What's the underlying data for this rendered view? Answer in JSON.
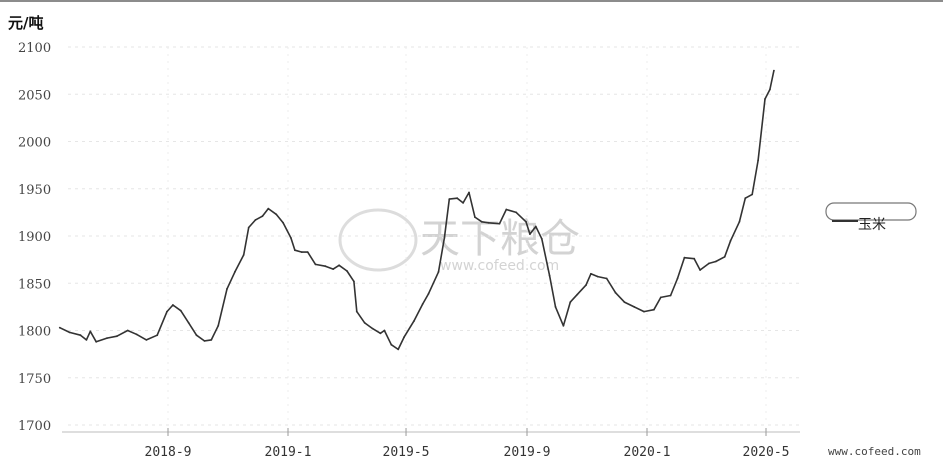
{
  "chart_data": {
    "type": "line",
    "ylabel": "元/吨",
    "ylim": [
      1700,
      2100
    ],
    "yticks": [
      "1700",
      "1750",
      "1800",
      "1850",
      "1900",
      "1950",
      "2000",
      "2050",
      "2100"
    ],
    "xticks": [
      {
        "label": "2018-9",
        "x": "2018-09-01"
      },
      {
        "label": "2019-1",
        "x": "2019-01-01"
      },
      {
        "label": "2019-5",
        "x": "2019-05-01"
      },
      {
        "label": "2019-9",
        "x": "2019-09-01"
      },
      {
        "label": "2020-1",
        "x": "2020-01-01"
      },
      {
        "label": "2020-5",
        "x": "2020-05-01"
      }
    ],
    "grid": true,
    "legend_position": "right",
    "series": [
      {
        "name": "玉米",
        "color": "#333333",
        "points": [
          [
            "2018-05-14",
            1803
          ],
          [
            "2018-05-24",
            1798
          ],
          [
            "2018-06-04",
            1795
          ],
          [
            "2018-06-10",
            1790
          ],
          [
            "2018-06-14",
            1799
          ],
          [
            "2018-06-20",
            1788
          ],
          [
            "2018-07-01",
            1792
          ],
          [
            "2018-07-11",
            1794
          ],
          [
            "2018-07-22",
            1800
          ],
          [
            "2018-07-31",
            1796
          ],
          [
            "2018-08-10",
            1790
          ],
          [
            "2018-08-21",
            1795
          ],
          [
            "2018-08-31",
            1820
          ],
          [
            "2018-09-06",
            1827
          ],
          [
            "2018-09-14",
            1821
          ],
          [
            "2018-09-22",
            1808
          ],
          [
            "2018-09-30",
            1795
          ],
          [
            "2018-10-08",
            1789
          ],
          [
            "2018-10-15",
            1790
          ],
          [
            "2018-10-22",
            1805
          ],
          [
            "2018-10-31",
            1844
          ],
          [
            "2018-11-08",
            1862
          ],
          [
            "2018-11-17",
            1880
          ],
          [
            "2018-11-22",
            1909
          ],
          [
            "2018-11-29",
            1917
          ],
          [
            "2018-12-06",
            1921
          ],
          [
            "2018-12-12",
            1929
          ],
          [
            "2018-12-20",
            1923
          ],
          [
            "2018-12-27",
            1914
          ],
          [
            "2019-01-04",
            1898
          ],
          [
            "2019-01-08",
            1885
          ],
          [
            "2019-01-15",
            1883
          ],
          [
            "2019-01-21",
            1883
          ],
          [
            "2019-01-29",
            1870
          ],
          [
            "2019-02-08",
            1868
          ],
          [
            "2019-02-16",
            1865
          ],
          [
            "2019-02-22",
            1869
          ],
          [
            "2019-03-02",
            1863
          ],
          [
            "2019-03-09",
            1852
          ],
          [
            "2019-03-12",
            1820
          ],
          [
            "2019-03-20",
            1808
          ],
          [
            "2019-03-28",
            1802
          ],
          [
            "2019-04-05",
            1797
          ],
          [
            "2019-04-09",
            1800
          ],
          [
            "2019-04-16",
            1785
          ],
          [
            "2019-04-23",
            1780
          ],
          [
            "2019-04-29",
            1793
          ],
          [
            "2019-05-09",
            1810
          ],
          [
            "2019-05-18",
            1828
          ],
          [
            "2019-05-24",
            1839
          ],
          [
            "2019-06-03",
            1862
          ],
          [
            "2019-06-09",
            1898
          ],
          [
            "2019-06-14",
            1939
          ],
          [
            "2019-06-22",
            1940
          ],
          [
            "2019-06-28",
            1935
          ],
          [
            "2019-07-04",
            1946
          ],
          [
            "2019-07-10",
            1920
          ],
          [
            "2019-07-17",
            1915
          ],
          [
            "2019-07-24",
            1914
          ],
          [
            "2019-08-04",
            1913
          ],
          [
            "2019-08-11",
            1928
          ],
          [
            "2019-08-21",
            1925
          ],
          [
            "2019-08-31",
            1915
          ],
          [
            "2019-09-04",
            1902
          ],
          [
            "2019-09-10",
            1910
          ],
          [
            "2019-09-16",
            1897
          ],
          [
            "2019-09-24",
            1858
          ],
          [
            "2019-09-30",
            1825
          ],
          [
            "2019-10-08",
            1805
          ],
          [
            "2019-10-15",
            1830
          ],
          [
            "2019-10-22",
            1838
          ],
          [
            "2019-10-31",
            1848
          ],
          [
            "2019-11-05",
            1860
          ],
          [
            "2019-11-12",
            1857
          ],
          [
            "2019-11-21",
            1855
          ],
          [
            "2019-11-30",
            1840
          ],
          [
            "2019-12-09",
            1830
          ],
          [
            "2019-12-19",
            1825
          ],
          [
            "2019-12-29",
            1820
          ],
          [
            "2020-01-08",
            1822
          ],
          [
            "2020-01-15",
            1835
          ],
          [
            "2020-01-25",
            1837
          ],
          [
            "2020-02-01",
            1855
          ],
          [
            "2020-02-08",
            1877
          ],
          [
            "2020-02-18",
            1876
          ],
          [
            "2020-02-24",
            1864
          ],
          [
            "2020-03-04",
            1871
          ],
          [
            "2020-03-11",
            1873
          ],
          [
            "2020-03-20",
            1878
          ],
          [
            "2020-03-26",
            1895
          ],
          [
            "2020-04-04",
            1915
          ],
          [
            "2020-04-10",
            1940
          ],
          [
            "2020-04-17",
            1944
          ],
          [
            "2020-04-23",
            1980
          ],
          [
            "2020-04-30",
            2045
          ],
          [
            "2020-05-05",
            2055
          ],
          [
            "2020-05-09",
            2075
          ]
        ]
      }
    ]
  },
  "watermark": {
    "brand": "天下粮仓",
    "url": "www.cofeed.com"
  },
  "source_label": "www.cofeed.com"
}
